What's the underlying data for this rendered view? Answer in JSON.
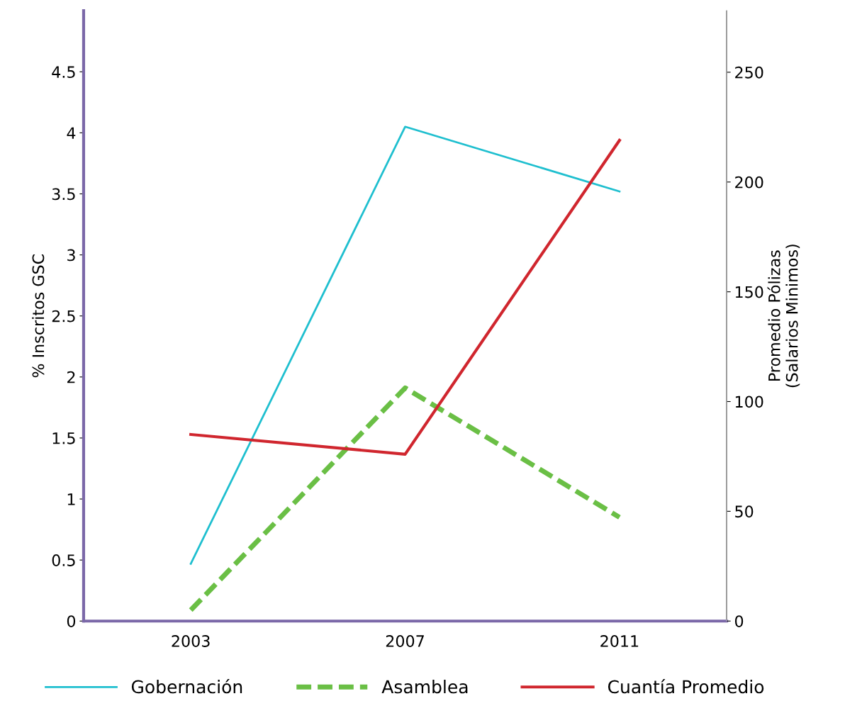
{
  "chart_data": {
    "type": "line",
    "ylabel": "% Inscritos GSC",
    "y2label": "Promedio Pólizas\n(Salarios Minimos)",
    "categories": [
      "2003",
      "2007",
      "2011"
    ],
    "series": [
      {
        "name": "Gobernación",
        "color": "#1fbfcf",
        "values": [
          0.47,
          4.05,
          3.52
        ],
        "line_style": "solid"
      },
      {
        "name": "Asamblea",
        "color": "#6abf45",
        "values": [
          0.09,
          1.91,
          0.85
        ],
        "line_style": "dashed"
      },
      {
        "name": "Cuantía Promedio",
        "color": "#d0262e",
        "values": [
          85,
          76,
          219
        ],
        "line_style": "solid",
        "axis": "y2"
      }
    ],
    "ylim": [
      0,
      5
    ],
    "yticks": [
      0,
      0.5,
      1,
      1.5,
      2,
      2.5,
      3,
      3.5,
      4,
      4.5
    ],
    "y2lim": [
      0,
      278
    ],
    "y2ticks": [
      0,
      50,
      100,
      150,
      200,
      250
    ],
    "grid": false,
    "legend": "bottom",
    "marker": "none"
  }
}
